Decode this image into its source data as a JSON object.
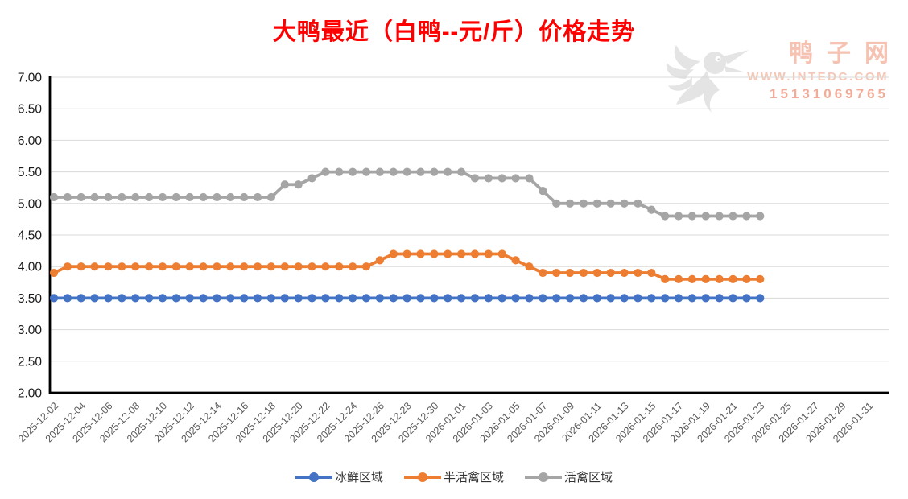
{
  "title": "大鸭最近（白鸭--元/斤）价格走势",
  "watermark": {
    "site_name": "鸭子网",
    "site_url": "WWW.INTEDC.COM",
    "phone": "15131069765",
    "logo_icon": "duck-logo"
  },
  "colors": {
    "title": "#fe0000",
    "axis": "#000000",
    "gridline": "#d9d9d9",
    "y_tick_label": "#1a1a1a",
    "x_tick_label": "#595959",
    "legend_text": "#333333",
    "watermark_text": "#f6c2b1",
    "watermark_phone": "#f3ab98",
    "watermark_logo": "#d6d6d6"
  },
  "chart_data": {
    "type": "line",
    "title": "大鸭最近（白鸭--元/斤）价格走势",
    "xlabel": "",
    "ylabel": "",
    "ylim": [
      2.0,
      7.0
    ],
    "y_ticks": [
      "7.00",
      "6.50",
      "6.00",
      "5.50",
      "5.00",
      "4.50",
      "4.00",
      "3.50",
      "3.00",
      "2.50",
      "2.00"
    ],
    "grid": true,
    "legend_position": "bottom",
    "x": [
      "2025-12-02",
      "2025-12-03",
      "2025-12-04",
      "2025-12-05",
      "2025-12-06",
      "2025-12-07",
      "2025-12-08",
      "2025-12-09",
      "2025-12-10",
      "2025-12-11",
      "2025-12-12",
      "2025-12-13",
      "2025-12-14",
      "2025-12-15",
      "2025-12-16",
      "2025-12-17",
      "2025-12-18",
      "2025-12-19",
      "2025-12-20",
      "2025-12-21",
      "2025-12-22",
      "2025-12-23",
      "2025-12-24",
      "2025-12-25",
      "2025-12-26",
      "2025-12-27",
      "2025-12-28",
      "2025-12-29",
      "2025-12-30",
      "2025-12-31",
      "2026-01-01",
      "2026-01-02",
      "2026-01-03",
      "2026-01-04",
      "2026-01-05",
      "2026-01-06",
      "2026-01-07",
      "2026-01-08",
      "2026-01-09",
      "2026-01-10",
      "2026-01-11",
      "2026-01-12",
      "2026-01-13",
      "2026-01-14",
      "2026-01-15",
      "2026-01-16",
      "2026-01-17",
      "2026-01-18",
      "2026-01-19",
      "2026-01-20",
      "2026-01-21",
      "2026-01-22",
      "2026-01-23"
    ],
    "x_tick_labels": [
      "2025-12-02",
      "2025-12-04",
      "2025-12-06",
      "2025-12-08",
      "2025-12-10",
      "2025-12-12",
      "2025-12-14",
      "2025-12-16",
      "2025-12-18",
      "2025-12-20",
      "2025-12-22",
      "2025-12-24",
      "2025-12-26",
      "2025-12-28",
      "2025-12-30",
      "2026-01-01",
      "2026-01-03",
      "2026-01-05",
      "2026-01-07",
      "2026-01-09",
      "2026-01-11",
      "2026-01-13",
      "2026-01-15",
      "2026-01-17",
      "2026-01-19",
      "2026-01-21",
      "2026-01-23",
      "2026-01-25",
      "2026-01-27",
      "2026-01-29",
      "2026-01-31"
    ],
    "series": [
      {
        "name": "冰鲜区域",
        "color": "#4472c4",
        "values": [
          3.5,
          3.5,
          3.5,
          3.5,
          3.5,
          3.5,
          3.5,
          3.5,
          3.5,
          3.5,
          3.5,
          3.5,
          3.5,
          3.5,
          3.5,
          3.5,
          3.5,
          3.5,
          3.5,
          3.5,
          3.5,
          3.5,
          3.5,
          3.5,
          3.5,
          3.5,
          3.5,
          3.5,
          3.5,
          3.5,
          3.5,
          3.5,
          3.5,
          3.5,
          3.5,
          3.5,
          3.5,
          3.5,
          3.5,
          3.5,
          3.5,
          3.5,
          3.5,
          3.5,
          3.5,
          3.5,
          3.5,
          3.5,
          3.5,
          3.5,
          3.5,
          3.5,
          3.5
        ]
      },
      {
        "name": "半活禽区域",
        "color": "#ed7d31",
        "values": [
          3.9,
          4.0,
          4.0,
          4.0,
          4.0,
          4.0,
          4.0,
          4.0,
          4.0,
          4.0,
          4.0,
          4.0,
          4.0,
          4.0,
          4.0,
          4.0,
          4.0,
          4.0,
          4.0,
          4.0,
          4.0,
          4.0,
          4.0,
          4.0,
          4.1,
          4.2,
          4.2,
          4.2,
          4.2,
          4.2,
          4.2,
          4.2,
          4.2,
          4.2,
          4.1,
          4.0,
          3.9,
          3.9,
          3.9,
          3.9,
          3.9,
          3.9,
          3.9,
          3.9,
          3.9,
          3.8,
          3.8,
          3.8,
          3.8,
          3.8,
          3.8,
          3.8,
          3.8
        ]
      },
      {
        "name": "活禽区域",
        "color": "#a5a5a5",
        "values": [
          5.1,
          5.1,
          5.1,
          5.1,
          5.1,
          5.1,
          5.1,
          5.1,
          5.1,
          5.1,
          5.1,
          5.1,
          5.1,
          5.1,
          5.1,
          5.1,
          5.1,
          5.3,
          5.3,
          5.4,
          5.5,
          5.5,
          5.5,
          5.5,
          5.5,
          5.5,
          5.5,
          5.5,
          5.5,
          5.5,
          5.5,
          5.4,
          5.4,
          5.4,
          5.4,
          5.4,
          5.2,
          5.0,
          5.0,
          5.0,
          5.0,
          5.0,
          5.0,
          5.0,
          4.9,
          4.8,
          4.8,
          4.8,
          4.8,
          4.8,
          4.8,
          4.8,
          4.8
        ]
      }
    ]
  }
}
